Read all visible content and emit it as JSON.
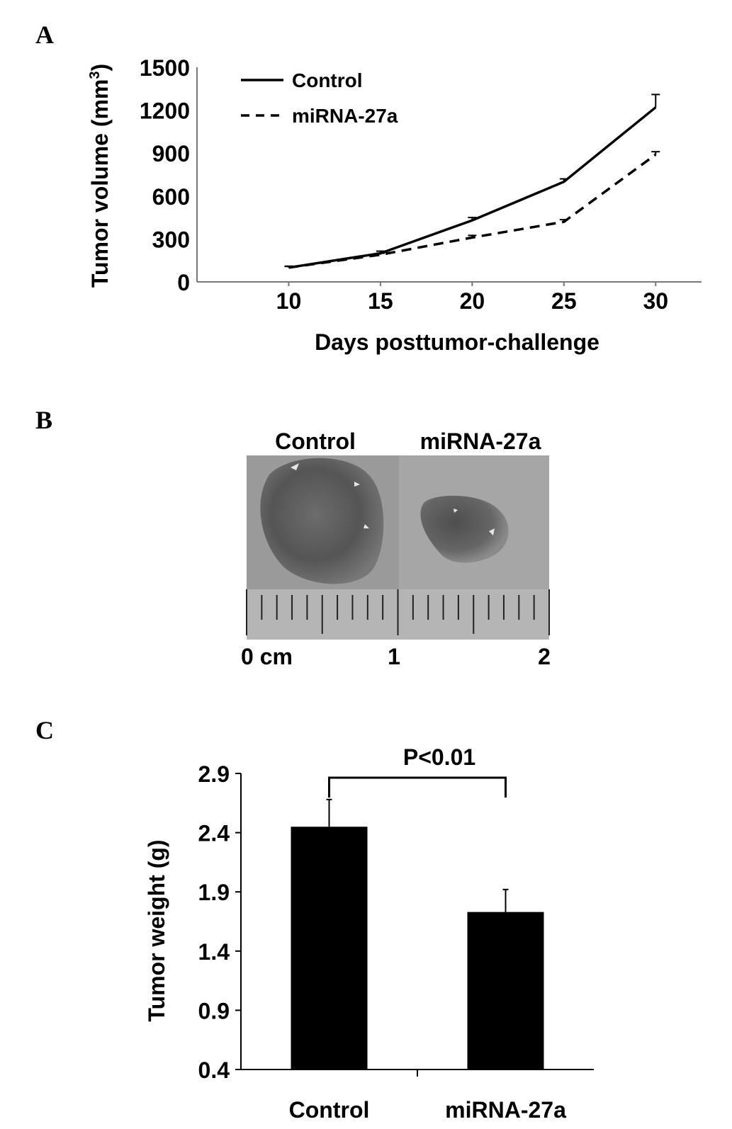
{
  "panels": {
    "a": "A",
    "b": "B",
    "c": "C"
  },
  "chart_data": [
    {
      "type": "line",
      "x": [
        10,
        15,
        20,
        25,
        30
      ],
      "series": [
        {
          "name": "Control",
          "values": [
            100,
            200,
            430,
            700,
            1220
          ],
          "errors": [
            10,
            15,
            20,
            20,
            90
          ],
          "style": "solid"
        },
        {
          "name": "miRNA-27a",
          "values": [
            100,
            190,
            310,
            420,
            890
          ],
          "errors": [
            8,
            10,
            15,
            15,
            20
          ],
          "style": "dashed"
        }
      ],
      "ylabel_main": "Tumor volume (mm",
      "ylabel_sup": "3",
      "ylabel_end": ")",
      "xlabel": "Days posttumor-challenge",
      "yticks": [
        0,
        300,
        600,
        900,
        1200,
        1500
      ],
      "xticks": [
        10,
        15,
        20,
        25,
        30
      ],
      "ylim": [
        0,
        1500
      ],
      "xlim": [
        5,
        32.5
      ],
      "legend_position": "top-left",
      "grid": false
    },
    {
      "type": "bar",
      "categories": [
        "Control",
        "miRNA-27a"
      ],
      "values": [
        2.45,
        1.73
      ],
      "errors": [
        0.23,
        0.19
      ],
      "ylabel": "Tumor weight (g)",
      "yticks": [
        "0.4",
        "0.9",
        "1.4",
        "1.9",
        "2.4",
        "2.9"
      ],
      "ylim": [
        0.4,
        2.9
      ],
      "significance": "P<0.01",
      "color": "#000000",
      "grid": false
    }
  ],
  "photo": {
    "labels": [
      "Control",
      "miRNA-27a"
    ],
    "scale_labels": [
      "0 cm",
      "1",
      "2"
    ]
  }
}
